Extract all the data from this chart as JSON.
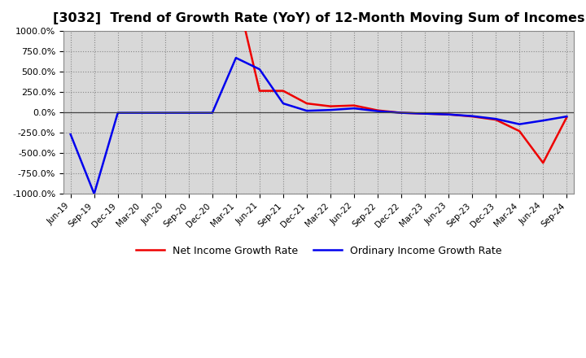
{
  "title": "[3032]  Trend of Growth Rate (YoY) of 12-Month Moving Sum of Incomes",
  "title_fontsize": 11.5,
  "ylim": [
    -1000,
    1000
  ],
  "yticks": [
    -1000,
    -750,
    -500,
    -250,
    0,
    250,
    500,
    750,
    1000
  ],
  "background_color": "#ffffff",
  "plot_bg_color": "#d8d8d8",
  "grid_color": "#888888",
  "line_color_ordinary": "#0000ee",
  "line_color_net": "#ee0000",
  "legend_ordinary": "Ordinary Income Growth Rate",
  "legend_net": "Net Income Growth Rate",
  "x_labels": [
    "Jun-19",
    "Sep-19",
    "Dec-19",
    "Mar-20",
    "Jun-20",
    "Sep-20",
    "Dec-20",
    "Mar-21",
    "Jun-21",
    "Sep-21",
    "Dec-21",
    "Mar-22",
    "Jun-22",
    "Sep-22",
    "Dec-22",
    "Mar-23",
    "Jun-23",
    "Sep-23",
    "Dec-23",
    "Mar-24",
    "Jun-24",
    "Sep-24"
  ],
  "ordinary_income_growth": [
    -270,
    -1000,
    -5,
    -5,
    -5,
    -5,
    -5,
    670,
    530,
    110,
    20,
    30,
    50,
    15,
    -5,
    -15,
    -25,
    -45,
    -80,
    -145,
    -100,
    -50
  ],
  "net_income_growth": [
    null,
    null,
    null,
    null,
    null,
    null,
    null,
    1500,
    265,
    265,
    110,
    75,
    85,
    25,
    -5,
    -15,
    -25,
    -50,
    -90,
    -230,
    -620,
    -60
  ]
}
